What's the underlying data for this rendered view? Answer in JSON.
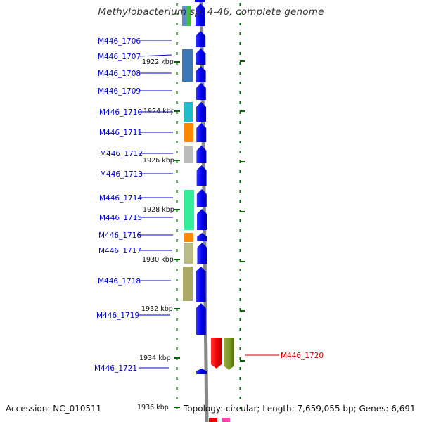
{
  "title": "Methylobacterium sp. 4-46, complete genome",
  "accession": "Accession: NC_010511",
  "topology": "Topology: circular; Length: 7,659,055 bp; Genes: 6,691",
  "colors": {
    "gene_arrow": "#0000ee",
    "label_blue": "#0000cc",
    "label_red": "#cc0000",
    "backbone": "#888888",
    "tick": "#006600"
  },
  "scale_labels": [
    "1922 kbp",
    "1924 kbp",
    "1926 kbp",
    "1928 kbp",
    "1930 kbp",
    "1932 kbp",
    "1934 kbp",
    "1936 kbp"
  ],
  "genes": [
    {
      "label": "M446_1706",
      "color": "blue"
    },
    {
      "label": "M446_1707",
      "color": "blue"
    },
    {
      "label": "M446_1708",
      "color": "blue"
    },
    {
      "label": "M446_1709",
      "color": "blue"
    },
    {
      "label": "M446_1710",
      "color": "blue"
    },
    {
      "label": "M446_1711",
      "color": "blue"
    },
    {
      "label": "M446_1712",
      "color": "blue"
    },
    {
      "label": "M446_1713",
      "color": "blue"
    },
    {
      "label": "M446_1714",
      "color": "blue"
    },
    {
      "label": "M446_1715",
      "color": "blue"
    },
    {
      "label": "M446_1716",
      "color": "blue"
    },
    {
      "label": "M446_1717",
      "color": "blue"
    },
    {
      "label": "M446_1718",
      "color": "blue"
    },
    {
      "label": "M446_1719",
      "color": "blue"
    },
    {
      "label": "M446_1720",
      "color": "red"
    },
    {
      "label": "M446_1721",
      "color": "blue"
    }
  ]
}
